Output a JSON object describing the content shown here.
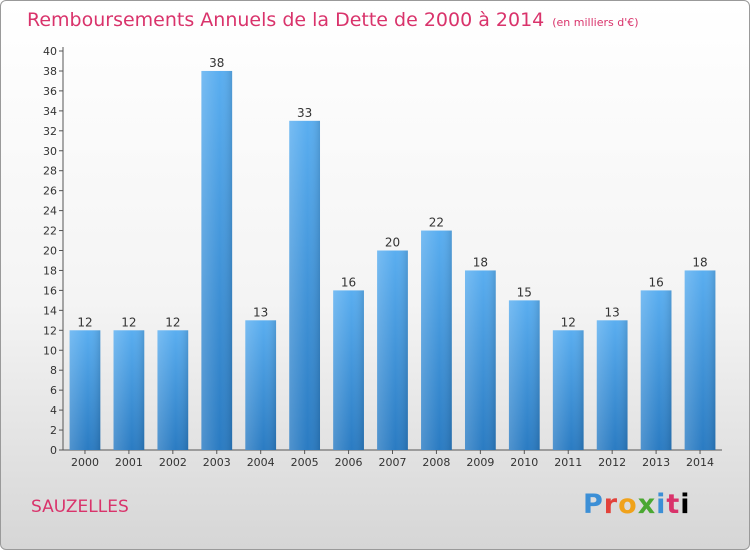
{
  "header": {
    "title": "Remboursements Annuels de la Dette de 2000 à 2014",
    "unit": "(en milliers d'€)"
  },
  "footer": {
    "commune": "SAUZELLES",
    "logo": [
      "P",
      "r",
      "o",
      "x",
      "i",
      "t",
      "i"
    ]
  },
  "colors": {
    "bar_top": "#5aaef0",
    "bar_bottom": "#2a7bc2",
    "title": "#d9336b"
  },
  "chart_data": {
    "type": "bar",
    "categories": [
      "2000",
      "2001",
      "2002",
      "2003",
      "2004",
      "2005",
      "2006",
      "2007",
      "2008",
      "2009",
      "2010",
      "2011",
      "2012",
      "2013",
      "2014"
    ],
    "values": [
      12,
      12,
      12,
      38,
      13,
      33,
      16,
      20,
      22,
      18,
      15,
      12,
      13,
      16,
      18
    ],
    "data_labels": [
      "12",
      "12",
      "12",
      "38",
      "13",
      "33",
      "16",
      "20",
      "22",
      "18",
      "15",
      "12",
      "13",
      "16",
      "18"
    ],
    "yticks": [
      "0",
      "2",
      "4",
      "6",
      "8",
      "10",
      "12",
      "14",
      "16",
      "18",
      "20",
      "22",
      "24",
      "26",
      "28",
      "30",
      "32",
      "34",
      "36",
      "38",
      "40"
    ],
    "ylim": [
      0,
      40
    ],
    "grid": false,
    "legend": "none"
  }
}
